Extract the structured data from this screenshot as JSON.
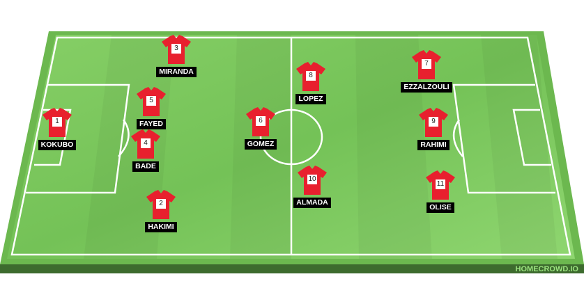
{
  "brand": "HOMECROWD.IO",
  "colors": {
    "shirt": "#e8202e",
    "pitch_light": "#8fd670",
    "pitch_dark": "#6dbb4f",
    "line": "#ffffff"
  },
  "players": [
    {
      "number": "1",
      "name": "KOKUBO"
    },
    {
      "number": "3",
      "name": "MIRANDA"
    },
    {
      "number": "5",
      "name": "FAYED"
    },
    {
      "number": "4",
      "name": "BADE"
    },
    {
      "number": "2",
      "name": "HAKIMI"
    },
    {
      "number": "6",
      "name": "GOMEZ"
    },
    {
      "number": "8",
      "name": "LOPEZ"
    },
    {
      "number": "10",
      "name": "ALMADA"
    },
    {
      "number": "7",
      "name": "EZZALZOULI"
    },
    {
      "number": "9",
      "name": "RAHIMI"
    },
    {
      "number": "11",
      "name": "OLISE"
    }
  ]
}
